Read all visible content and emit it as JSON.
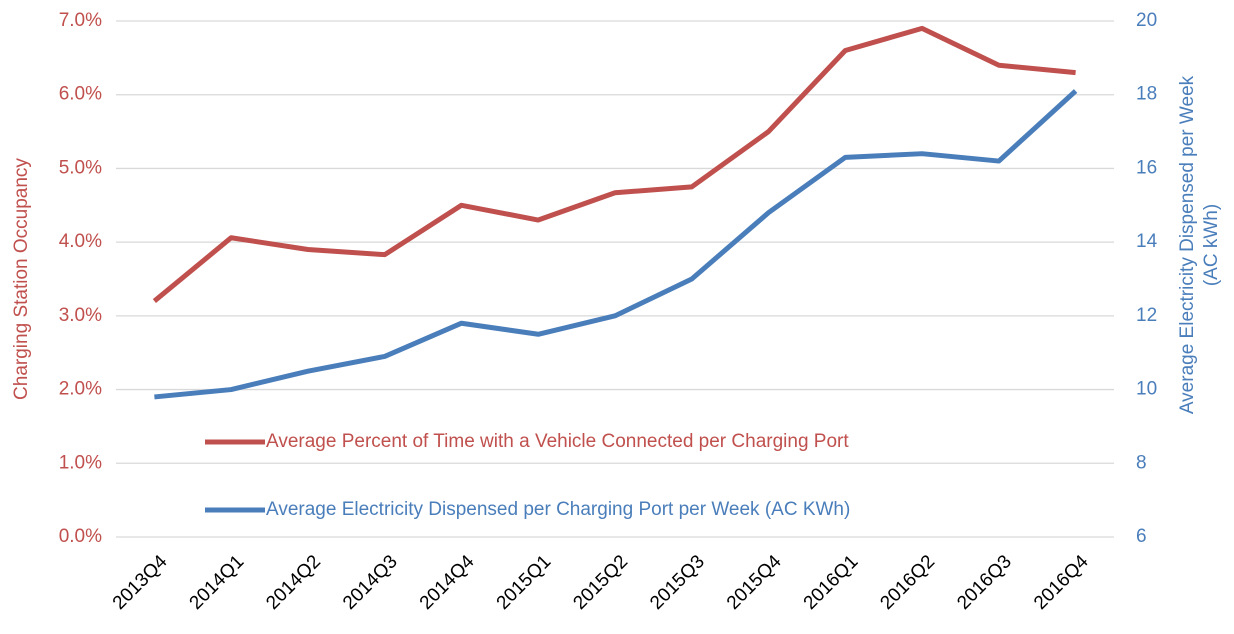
{
  "chart_data": {
    "type": "line",
    "y_label": "Charging Station Occupancy",
    "y2_label": [
      "Average Electricity Dispensed per Week",
      "(AC kWh)"
    ],
    "categories": [
      "2013Q4",
      "2014Q1",
      "2014Q2",
      "2014Q3",
      "2014Q4",
      "2015Q1",
      "2015Q2",
      "2015Q3",
      "2015Q4",
      "2016Q1",
      "2016Q2",
      "2016Q3",
      "2016Q4"
    ],
    "series": [
      {
        "name": "Average Percent of Time with a Vehicle Connected per Charging Port",
        "color": "#c0504d",
        "axis": "y",
        "values": [
          3.2,
          4.06,
          3.9,
          3.83,
          4.5,
          4.3,
          4.67,
          4.75,
          5.5,
          6.6,
          6.9,
          6.4,
          6.3
        ]
      },
      {
        "name": "Average Electricity Dispensed per Charging Port per Week (AC KWh)",
        "color": "#4a7ebb",
        "axis": "y2",
        "values": [
          9.8,
          10.0,
          10.5,
          10.9,
          11.8,
          11.5,
          12.0,
          13.0,
          14.8,
          16.3,
          16.4,
          16.2,
          18.1
        ]
      }
    ],
    "ylim": [
      0,
      7
    ],
    "yticks": [
      {
        "value": 0,
        "label": "0.0%"
      },
      {
        "value": 1,
        "label": "1.0%"
      },
      {
        "value": 2,
        "label": "2.0%"
      },
      {
        "value": 3,
        "label": "3.0%"
      },
      {
        "value": 4,
        "label": "4.0%"
      },
      {
        "value": 5,
        "label": "5.0%"
      },
      {
        "value": 6,
        "label": "6.0%"
      },
      {
        "value": 7,
        "label": "7.0%"
      }
    ],
    "y2lim": [
      6,
      20
    ],
    "y2ticks": [
      6,
      8,
      10,
      12,
      14,
      16,
      18,
      20
    ],
    "grid": true
  }
}
